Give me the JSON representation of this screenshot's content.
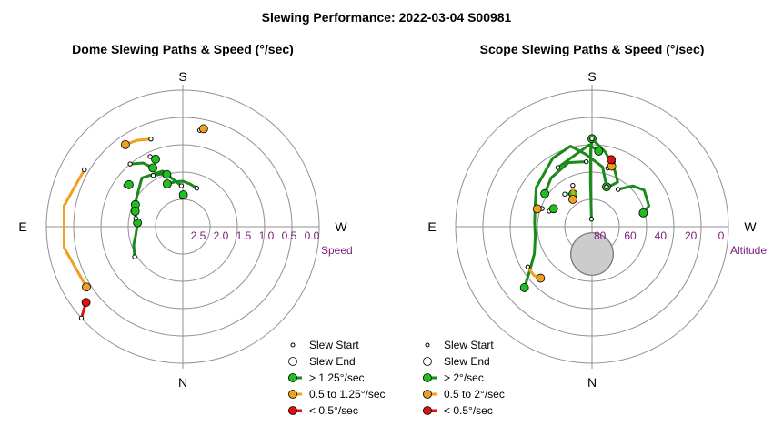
{
  "title": "Slewing Performance: 2022-03-04 S00981",
  "colors": {
    "fast": "#1fbf1f",
    "fast_line": "#1a8a1a",
    "mid": "#f0a020",
    "slow": "#e01010",
    "grid": "#909090",
    "tick": "#7a1a7a",
    "blocked": "#cccccc"
  },
  "chart_data": [
    {
      "type": "scatter",
      "subtype": "polar",
      "title": "Dome Slewing Paths & Speed (°/sec)",
      "directions": {
        "top": "S",
        "bottom": "N",
        "left": "E",
        "right": "W"
      },
      "radial_label": "Speed",
      "radial_ticks": [
        "2.5",
        "2.0",
        "1.5",
        "1.0",
        "0.5",
        "0.0"
      ],
      "radial_range": [
        3.0,
        0.0
      ],
      "legend": [
        {
          "kind": "start",
          "label": "Slew Start"
        },
        {
          "kind": "end",
          "label": "Slew End"
        },
        {
          "kind": "fast",
          "label": "> 1.25°/sec"
        },
        {
          "kind": "mid",
          "label": "0.5 to 1.25°/sec"
        },
        {
          "kind": "slow",
          "label": "< 0.5°/sec"
        }
      ],
      "paths": [
        {
          "speed": "fast",
          "start": [
            178,
            2.1
          ],
          "points": [
            [
              178,
              2.1
            ],
            [
              160,
              1.7
            ],
            [
              140,
              1.6
            ],
            [
              122,
              1.8
            ],
            [
              115,
              1.85
            ]
          ],
          "end": [
            115,
            1.85
          ]
        },
        {
          "speed": "fast",
          "start": [
            200,
            2.1
          ],
          "points": [
            [
              200,
              2.1
            ],
            [
              190,
              2.05
            ],
            [
              180,
              2.0
            ],
            [
              170,
              2.0
            ],
            [
              160,
              2.0
            ]
          ],
          "end": [
            160,
            2.0
          ]
        },
        {
          "speed": "fast",
          "start": [
            150,
            1.7
          ],
          "points": [
            [
              150,
              1.7
            ],
            [
              158,
              1.75
            ],
            [
              163,
              1.8
            ]
          ],
          "end": [
            163,
            1.8
          ]
        },
        {
          "speed": "fast",
          "start": [
            140,
            1.2
          ],
          "points": [
            [
              140,
              1.2
            ],
            [
              148,
              1.35
            ],
            [
              153,
              1.55
            ]
          ],
          "end": [
            153,
            1.55
          ]
        },
        {
          "speed": "fast",
          "start": [
            155,
            1.3
          ],
          "points": [
            [
              155,
              1.3
            ],
            [
              158,
              1.4
            ]
          ],
          "end": [
            158,
            1.4
          ]
        },
        {
          "speed": "fast",
          "start": [
            178,
            2.35
          ],
          "points": [
            [
              178,
              2.35
            ],
            [
              181,
              2.3
            ]
          ],
          "end": [
            181,
            2.3
          ]
        },
        {
          "speed": "fast",
          "start": [
            58,
            1.75
          ],
          "points": [
            [
              58,
              1.75
            ],
            [
              70,
              1.85
            ],
            [
              80,
              1.95
            ],
            [
              95,
              2.0
            ]
          ],
          "end": [
            95,
            2.0
          ]
        },
        {
          "speed": "fast",
          "start": [
            100,
            1.95
          ],
          "points": [
            [
              100,
              1.95
            ],
            [
              108,
              1.9
            ]
          ],
          "end": [
            108,
            1.9
          ]
        },
        {
          "speed": "fast",
          "start": [
            126,
            1.45
          ],
          "points": [
            [
              126,
              1.45
            ],
            [
              128,
              1.5
            ]
          ],
          "end": [
            128,
            1.5
          ]
        },
        {
          "speed": "mid",
          "start": [
            160,
            0.95
          ],
          "points": [
            [
              160,
              0.95
            ],
            [
              152,
              0.85
            ],
            [
              145,
              0.8
            ]
          ],
          "end": [
            145,
            0.8
          ]
        },
        {
          "speed": "mid",
          "start": [
            190,
            0.85
          ],
          "points": [
            [
              190,
              0.85
            ],
            [
              192,
              0.8
            ]
          ],
          "end": [
            192,
            0.8
          ]
        },
        {
          "speed": "mid",
          "start": [
            120,
            0.5
          ],
          "points": [
            [
              120,
              0.5
            ],
            [
              100,
              0.35
            ],
            [
              80,
              0.35
            ],
            [
              58,
              0.5
            ]
          ],
          "end": [
            58,
            0.5
          ]
        },
        {
          "speed": "slow",
          "start": [
            48,
            0.0
          ],
          "points": [
            [
              48,
              0.0
            ],
            [
              52,
              0.3
            ]
          ],
          "end": [
            52,
            0.3
          ]
        }
      ]
    },
    {
      "type": "scatter",
      "subtype": "polar",
      "title": "Scope Slewing Paths & Speed (°/sec)",
      "directions": {
        "top": "S",
        "bottom": "N",
        "left": "E",
        "right": "W"
      },
      "radial_label": "Altitude",
      "radial_ticks": [
        "80",
        "60",
        "40",
        "20",
        "0"
      ],
      "radial_range": [
        90,
        0
      ],
      "legend": [
        {
          "kind": "start",
          "label": "Slew Start"
        },
        {
          "kind": "end",
          "label": "Slew End"
        },
        {
          "kind": "fast",
          "label": "> 2°/sec"
        },
        {
          "kind": "mid",
          "label": "0.5 to 2°/sec"
        },
        {
          "kind": "slow",
          "label": "< 0.5°/sec"
        }
      ],
      "paths": [
        {
          "speed": "fast",
          "start": [
            176,
            85
          ],
          "points": [
            [
              176,
              85
            ],
            [
              178,
              60
            ],
            [
              179,
              40
            ],
            [
              180,
              32
            ]
          ],
          "end": [
            180,
            32
          ]
        },
        {
          "speed": "fast",
          "start": [
            180,
            32
          ],
          "points": [
            [
              180,
              32
            ],
            [
              190,
              40
            ],
            [
              200,
              48
            ],
            [
              210,
              56
            ],
            [
              205,
              60
            ],
            [
              200,
              62
            ]
          ],
          "end": [
            200,
            62
          ]
        },
        {
          "speed": "fast",
          "start": [
            200,
            62
          ],
          "points": [
            [
              200,
              62
            ],
            [
              190,
              50
            ],
            [
              175,
              42
            ],
            [
              165,
              35
            ],
            [
              150,
              38
            ],
            [
              125,
              45
            ],
            [
              110,
              50
            ],
            [
              95,
              52
            ],
            [
              80,
              52
            ],
            [
              65,
              48
            ],
            [
              55,
              40
            ],
            [
              48,
              30
            ]
          ],
          "end": [
            48,
            30
          ]
        },
        {
          "speed": "fast",
          "start": [
            150,
            45
          ],
          "points": [
            [
              150,
              45
            ],
            [
              165,
              42
            ],
            [
              178,
              36
            ],
            [
              185,
              40
            ]
          ],
          "end": [
            185,
            40
          ]
        },
        {
          "speed": "fast",
          "start": [
            175,
            47
          ],
          "points": [
            [
              175,
              47
            ],
            [
              160,
              45
            ],
            [
              140,
              48
            ],
            [
              125,
              52
            ]
          ],
          "end": [
            125,
            52
          ]
        },
        {
          "speed": "fast",
          "start": [
            215,
            60
          ],
          "points": [
            [
              215,
              60
            ],
            [
              225,
              52
            ],
            [
              235,
              48
            ],
            [
              250,
              50
            ],
            [
              255,
              55
            ]
          ],
          "end": [
            255,
            55
          ]
        },
        {
          "speed": "fast",
          "start": [
            140,
            62
          ],
          "points": [
            [
              140,
              62
            ],
            [
              150,
              65
            ]
          ],
          "end": [
            150,
            65
          ]
        },
        {
          "speed": "fast",
          "start": [
            110,
            60
          ],
          "points": [
            [
              110,
              60
            ],
            [
              115,
              62
            ]
          ],
          "end": [
            115,
            62
          ]
        },
        {
          "speed": "mid",
          "start": [
            155,
            60
          ],
          "points": [
            [
              155,
              60
            ],
            [
              150,
              65
            ],
            [
              145,
              68
            ]
          ],
          "end": [
            145,
            68
          ]
        },
        {
          "speed": "mid",
          "start": [
            110,
            55
          ],
          "points": [
            [
              110,
              55
            ],
            [
              108,
              52
            ]
          ],
          "end": [
            108,
            52
          ]
        },
        {
          "speed": "mid",
          "start": [
            58,
            40
          ],
          "points": [
            [
              58,
              40
            ],
            [
              50,
              40
            ],
            [
              45,
              42
            ]
          ],
          "end": [
            45,
            42
          ]
        },
        {
          "speed": "mid",
          "start": [
            195,
            50
          ],
          "points": [
            [
              195,
              50
            ],
            [
              198,
              48
            ]
          ],
          "end": [
            198,
            48
          ]
        },
        {
          "speed": "slow",
          "start": [
            198,
            45
          ],
          "points": [
            [
              198,
              45
            ],
            [
              196,
              44
            ]
          ],
          "end": [
            196,
            44
          ]
        }
      ],
      "blocked_region": {
        "center": [
          0,
          72
        ],
        "radius_deg": 14
      }
    }
  ]
}
